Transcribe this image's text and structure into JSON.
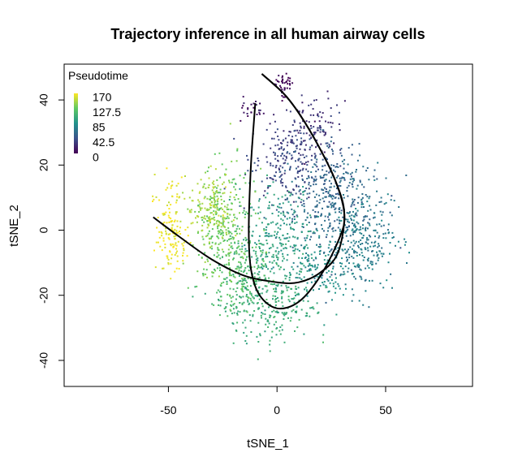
{
  "chart_data": {
    "type": "scatter",
    "title": "Trajectory inference in all human airway cells",
    "xlabel": "tSNE_1",
    "ylabel": "tSNE_2",
    "xlim": [
      -98,
      90
    ],
    "ylim": [
      -48,
      51
    ],
    "xticks": [
      -50,
      0,
      50
    ],
    "yticks": [
      -40,
      -20,
      0,
      20,
      40
    ],
    "grid": false,
    "legend": {
      "title": "Pseudotime",
      "position": "top-left",
      "labels": [
        "170",
        "127.5",
        "85",
        "42.5",
        "0"
      ],
      "range": [
        0,
        170
      ]
    },
    "colormap": [
      "#440154",
      "#3b528b",
      "#21918c",
      "#5ec962",
      "#fde725"
    ],
    "clusters": [
      {
        "center": [
          3,
          45
        ],
        "spread": [
          2,
          2
        ],
        "n": 40,
        "pseudotime": 3
      },
      {
        "center": [
          -13,
          36
        ],
        "spread": [
          4,
          2
        ],
        "n": 15,
        "pseudotime": 10
      },
      {
        "center": [
          -10,
          37
        ],
        "spread": [
          2,
          2
        ],
        "n": 10,
        "pseudotime": 12
      },
      {
        "center": [
          17,
          31
        ],
        "spread": [
          7,
          5
        ],
        "n": 110,
        "pseudotime": 25
      },
      {
        "center": [
          3,
          22
        ],
        "spread": [
          8,
          6
        ],
        "n": 170,
        "pseudotime": 35
      },
      {
        "center": [
          20,
          16
        ],
        "spread": [
          9,
          7
        ],
        "n": 150,
        "pseudotime": 50
      },
      {
        "center": [
          28,
          6
        ],
        "spread": [
          12,
          9
        ],
        "n": 300,
        "pseudotime": 60
      },
      {
        "center": [
          38,
          -5
        ],
        "spread": [
          8,
          7
        ],
        "n": 250,
        "pseudotime": 72
      },
      {
        "center": [
          20,
          -13
        ],
        "spread": [
          7,
          5
        ],
        "n": 100,
        "pseudotime": 85
      },
      {
        "center": [
          0,
          -3
        ],
        "spread": [
          9,
          8
        ],
        "n": 270,
        "pseudotime": 95
      },
      {
        "center": [
          -5,
          -22
        ],
        "spread": [
          11,
          6
        ],
        "n": 300,
        "pseudotime": 105
      },
      {
        "center": [
          -17,
          -12
        ],
        "spread": [
          7,
          6
        ],
        "n": 140,
        "pseudotime": 118
      },
      {
        "center": [
          -24,
          0
        ],
        "spread": [
          7,
          9
        ],
        "n": 270,
        "pseudotime": 130
      },
      {
        "center": [
          -31,
          7
        ],
        "spread": [
          5,
          6
        ],
        "n": 150,
        "pseudotime": 148
      },
      {
        "center": [
          -50,
          1
        ],
        "spread": [
          3,
          7
        ],
        "n": 110,
        "pseudotime": 165
      },
      {
        "center": [
          -46,
          -4
        ],
        "spread": [
          3,
          4
        ],
        "n": 40,
        "pseudotime": 168
      }
    ],
    "trajectories": [
      {
        "points": [
          [
            -10,
            39
          ],
          [
            -12,
            20
          ],
          [
            -13,
            0
          ],
          [
            -12,
            -12
          ],
          [
            -8,
            -20
          ],
          [
            0,
            -24
          ],
          [
            10,
            -22
          ],
          [
            20,
            -14
          ],
          [
            29,
            -2
          ],
          [
            31,
            5
          ],
          [
            27,
            15
          ],
          [
            19,
            26
          ],
          [
            10,
            36
          ],
          [
            3,
            42
          ],
          [
            -7,
            48
          ]
        ]
      },
      {
        "points": [
          [
            -57,
            4
          ],
          [
            -45,
            -2
          ],
          [
            -30,
            -9
          ],
          [
            -15,
            -14
          ],
          [
            0,
            -16
          ],
          [
            10,
            -16
          ],
          [
            20,
            -13
          ],
          [
            28,
            -7
          ],
          [
            31,
            5
          ],
          [
            27,
            15
          ],
          [
            19,
            26
          ],
          [
            10,
            36
          ],
          [
            3,
            42
          ],
          [
            -7,
            48
          ]
        ]
      }
    ]
  }
}
